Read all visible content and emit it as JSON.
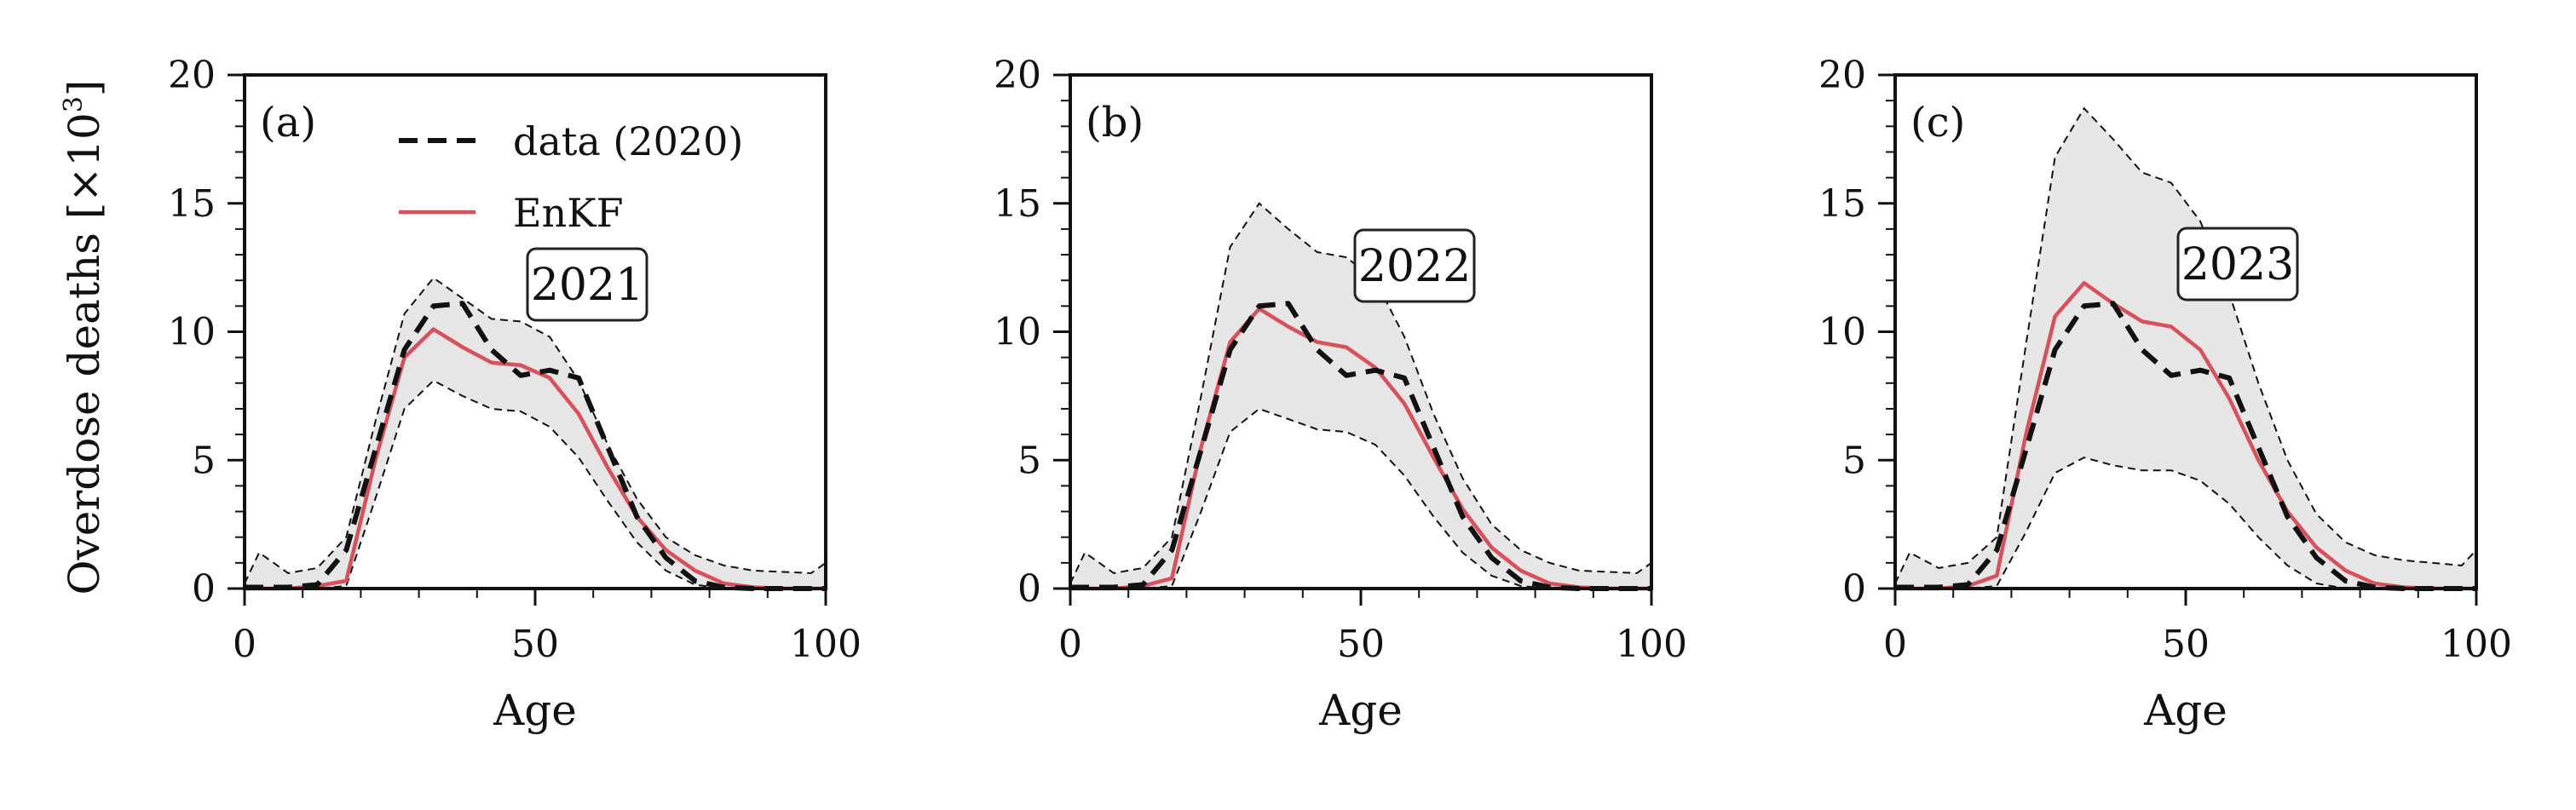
{
  "figure": {
    "ylabel_main": "Overdose deaths [×10",
    "ylabel_exp": "3",
    "ylabel_close": "]"
  },
  "legend": {
    "data_label": "data (2020)",
    "enkf_label": "EnKF"
  },
  "colors": {
    "data": "#111111",
    "enkf": "#d9505a",
    "band_fill": "#e6e6e6",
    "band_edge": "#111111"
  },
  "chart_data": [
    {
      "type": "line",
      "panel_label": "(a)",
      "year_box": "2021",
      "xlabel": "Age",
      "xlim": [
        0,
        100
      ],
      "ylim": [
        0,
        20
      ],
      "x_ticks": [
        "0",
        "50",
        "100"
      ],
      "y_ticks": [
        "0",
        "5",
        "10",
        "15",
        "20"
      ],
      "x": [
        0,
        2.5,
        7.5,
        12.5,
        17.5,
        22.5,
        27.5,
        32.5,
        37.5,
        42.5,
        47.5,
        52.5,
        57.5,
        62.5,
        67.5,
        72.5,
        77.5,
        82.5,
        87.5,
        92.5,
        97.5,
        100
      ],
      "series": [
        {
          "name": "data (2020)",
          "style": "dashed",
          "values": [
            0.05,
            0.05,
            0.05,
            0.15,
            1.5,
            5.4,
            9.3,
            11.0,
            11.1,
            9.3,
            8.3,
            8.5,
            8.2,
            5.5,
            2.8,
            1.2,
            0.3,
            0.05,
            0.0,
            0.0,
            0.0,
            0.0
          ]
        },
        {
          "name": "EnKF",
          "style": "solid",
          "values": [
            0.0,
            0.0,
            0.0,
            0.1,
            0.3,
            5.0,
            9.0,
            10.1,
            9.4,
            8.8,
            8.7,
            8.2,
            6.8,
            4.7,
            2.8,
            1.5,
            0.7,
            0.2,
            0.05,
            0.0,
            0.0,
            0.0
          ]
        }
      ],
      "band": {
        "upper": [
          0.2,
          1.4,
          0.6,
          0.8,
          2.0,
          6.5,
          10.7,
          12.1,
          11.3,
          10.5,
          10.4,
          9.8,
          8.1,
          5.6,
          3.5,
          2.0,
          1.3,
          0.9,
          0.7,
          0.65,
          0.6,
          1.0
        ],
        "lower": [
          0.0,
          0.0,
          0.0,
          0.0,
          0.1,
          3.5,
          7.0,
          8.1,
          7.5,
          7.0,
          6.9,
          6.3,
          5.1,
          3.4,
          1.8,
          0.7,
          0.15,
          0.0,
          0.0,
          0.0,
          0.0,
          0.0
        ]
      }
    },
    {
      "type": "line",
      "panel_label": "(b)",
      "year_box": "2022",
      "xlabel": "Age",
      "xlim": [
        0,
        100
      ],
      "ylim": [
        0,
        20
      ],
      "x_ticks": [
        "0",
        "50",
        "100"
      ],
      "y_ticks": [
        "0",
        "5",
        "10",
        "15",
        "20"
      ],
      "x": [
        0,
        2.5,
        7.5,
        12.5,
        17.5,
        22.5,
        27.5,
        32.5,
        37.5,
        42.5,
        47.5,
        52.5,
        57.5,
        62.5,
        67.5,
        72.5,
        77.5,
        82.5,
        87.5,
        92.5,
        97.5,
        100
      ],
      "series": [
        {
          "name": "data (2020)",
          "style": "dashed",
          "values": [
            0.05,
            0.05,
            0.05,
            0.15,
            1.5,
            5.4,
            9.3,
            11.0,
            11.1,
            9.3,
            8.3,
            8.5,
            8.2,
            5.5,
            2.8,
            1.2,
            0.3,
            0.05,
            0.0,
            0.0,
            0.0,
            0.0
          ]
        },
        {
          "name": "EnKF",
          "style": "solid",
          "values": [
            0.0,
            0.0,
            0.0,
            0.1,
            0.4,
            5.5,
            9.6,
            10.9,
            10.2,
            9.6,
            9.4,
            8.6,
            7.2,
            5.1,
            3.1,
            1.6,
            0.7,
            0.2,
            0.05,
            0.0,
            0.0,
            0.0
          ]
        }
      ],
      "band": {
        "upper": [
          0.2,
          1.4,
          0.6,
          0.8,
          2.0,
          7.5,
          13.3,
          15.0,
          14.0,
          13.1,
          12.9,
          12.0,
          9.8,
          6.8,
          4.3,
          2.5,
          1.5,
          1.0,
          0.7,
          0.65,
          0.6,
          1.0
        ],
        "lower": [
          0.0,
          0.0,
          0.0,
          0.0,
          0.1,
          3.0,
          6.1,
          7.0,
          6.6,
          6.2,
          6.1,
          5.6,
          4.4,
          2.8,
          1.4,
          0.5,
          0.1,
          0.0,
          0.0,
          0.0,
          0.0,
          0.0
        ]
      }
    },
    {
      "type": "line",
      "panel_label": "(c)",
      "year_box": "2023",
      "xlabel": "Age",
      "xlim": [
        0,
        100
      ],
      "ylim": [
        0,
        20
      ],
      "x_ticks": [
        "0",
        "50",
        "100"
      ],
      "y_ticks": [
        "0",
        "5",
        "10",
        "15",
        "20"
      ],
      "x": [
        0,
        2.5,
        7.5,
        12.5,
        17.5,
        22.5,
        27.5,
        32.5,
        37.5,
        42.5,
        47.5,
        52.5,
        57.5,
        62.5,
        67.5,
        72.5,
        77.5,
        82.5,
        87.5,
        92.5,
        97.5,
        100
      ],
      "series": [
        {
          "name": "data (2020)",
          "style": "dashed",
          "values": [
            0.05,
            0.05,
            0.05,
            0.15,
            1.5,
            5.4,
            9.3,
            11.0,
            11.1,
            9.3,
            8.3,
            8.5,
            8.2,
            5.5,
            2.8,
            1.2,
            0.3,
            0.05,
            0.0,
            0.0,
            0.0,
            0.0
          ]
        },
        {
          "name": "EnKF",
          "style": "solid",
          "values": [
            0.0,
            0.0,
            0.0,
            0.1,
            0.5,
            6.0,
            10.6,
            11.9,
            11.1,
            10.4,
            10.2,
            9.3,
            7.4,
            5.0,
            3.0,
            1.6,
            0.7,
            0.2,
            0.05,
            0.0,
            0.0,
            0.0
          ]
        }
      ],
      "band": {
        "upper": [
          0.2,
          1.4,
          0.8,
          1.0,
          2.0,
          9.5,
          16.8,
          18.7,
          17.5,
          16.2,
          15.8,
          14.3,
          11.5,
          8.0,
          5.0,
          2.9,
          1.8,
          1.3,
          1.1,
          1.0,
          0.9,
          1.5
        ],
        "lower": [
          0.0,
          0.0,
          0.0,
          0.0,
          0.1,
          2.2,
          4.5,
          5.1,
          4.8,
          4.6,
          4.6,
          4.2,
          3.3,
          2.0,
          0.9,
          0.2,
          0.0,
          0.0,
          0.0,
          0.0,
          0.0,
          0.0
        ]
      }
    }
  ]
}
